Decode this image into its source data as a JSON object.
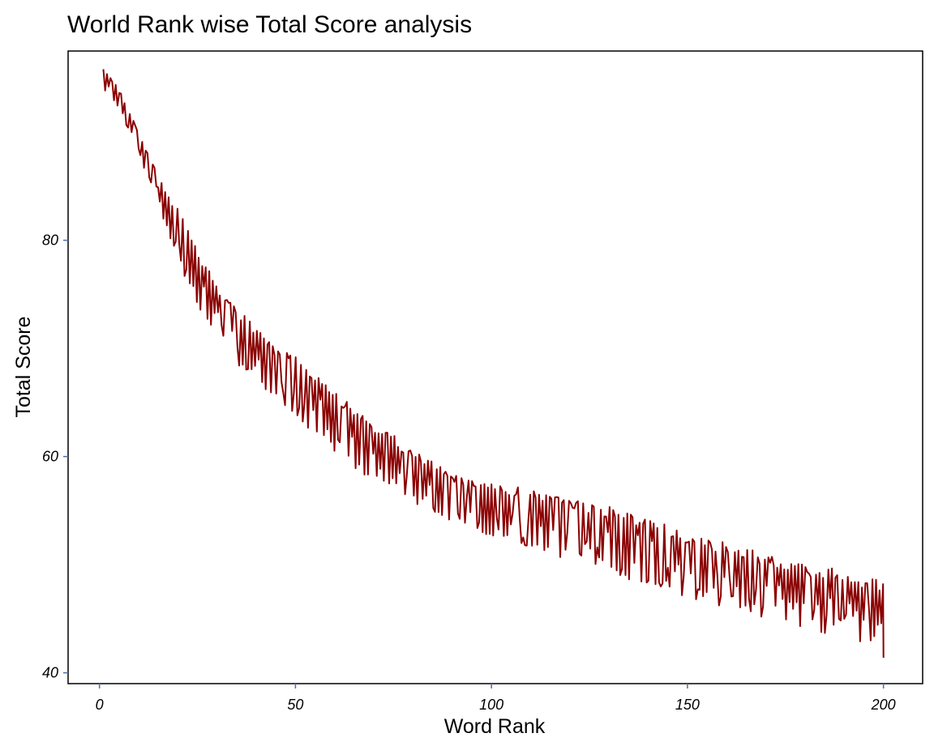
{
  "chart_data": {
    "type": "line",
    "title": "World Rank wise Total Score analysis",
    "xlabel": "Word Rank",
    "ylabel": "Total Score",
    "xlim": [
      -8,
      210
    ],
    "ylim": [
      39,
      97.5
    ],
    "x_ticks": [
      0,
      50,
      100,
      150,
      200
    ],
    "y_ticks": [
      40,
      60,
      80
    ],
    "x_tick_labels": [
      "0",
      "50",
      "100",
      "150",
      "200"
    ],
    "y_tick_labels": [
      "40",
      "60",
      "80"
    ],
    "line_color": "#8B0000",
    "grid": false,
    "series": [
      {
        "x": [
          1,
          5,
          10,
          15,
          20,
          25,
          30,
          35,
          40,
          45,
          50,
          55,
          60,
          65,
          70,
          75,
          80,
          85,
          90,
          95,
          100,
          110,
          120,
          130,
          140,
          150,
          160,
          170,
          180,
          190,
          200
        ],
        "y_upper": [
          96,
          94,
          90,
          86,
          83,
          79,
          76,
          74,
          72,
          70,
          69.5,
          68,
          66,
          64.5,
          63,
          62,
          60.5,
          59.5,
          58.5,
          58,
          57.5,
          57,
          56,
          55.5,
          54.5,
          53,
          52,
          51,
          50,
          49.5,
          48.5
        ],
        "y_lower": [
          94,
          92,
          88,
          83,
          78,
          74,
          71,
          68.5,
          67,
          65,
          63.5,
          62,
          60.5,
          59,
          57.5,
          56.5,
          55.5,
          55,
          54,
          53,
          52.5,
          51.5,
          50,
          49,
          48,
          47,
          46,
          45,
          44,
          43,
          42
        ]
      }
    ]
  }
}
